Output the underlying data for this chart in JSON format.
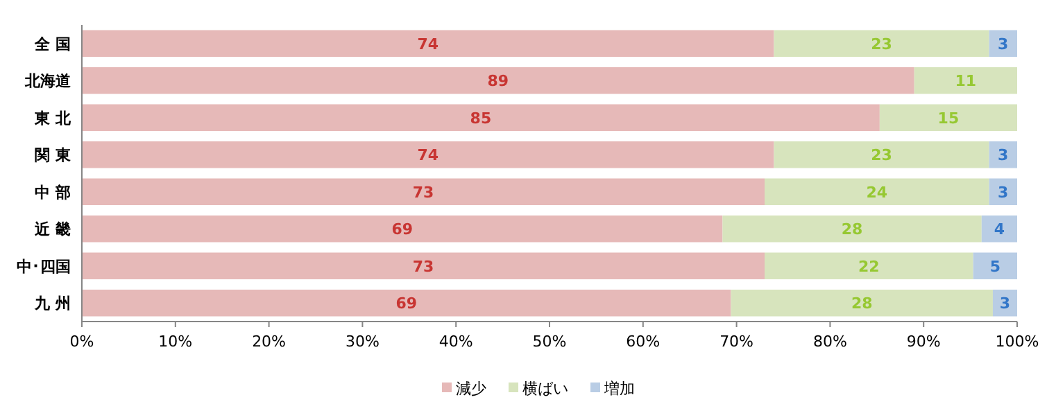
{
  "chart_data": {
    "type": "bar",
    "orientation": "horizontal",
    "stacked": true,
    "categories": [
      "全 国",
      "北海道",
      "東 北",
      "関 東",
      "中 部",
      "近 畿",
      "中･四国",
      "九 州"
    ],
    "series": [
      {
        "name": "減少",
        "color": "#e6b9b8",
        "values": [
          74,
          89,
          85.3,
          74,
          73,
          68.5,
          73,
          69.4
        ],
        "value_labels": [
          "74",
          "89",
          "85",
          "74",
          "73",
          "69",
          "73",
          "69"
        ]
      },
      {
        "name": "横ばい",
        "color": "#d7e4bd",
        "values": [
          23,
          11,
          14.7,
          23,
          24,
          27.7,
          22.3,
          28
        ],
        "value_labels": [
          "23",
          "11",
          "15",
          "23",
          "24",
          "28",
          "22",
          "28"
        ]
      },
      {
        "name": "増加",
        "color": "#b9cde5",
        "values": [
          3,
          0,
          0,
          3,
          3,
          3.8,
          4.7,
          2.6
        ],
        "value_labels": [
          "3",
          null,
          null,
          "3",
          "3",
          "4",
          "5",
          "3"
        ]
      }
    ],
    "xlim": [
      0,
      100
    ],
    "xticks": [
      {
        "value": 0,
        "label": "0%"
      },
      {
        "value": 10,
        "label": "10%"
      },
      {
        "value": 20,
        "label": "20%"
      },
      {
        "value": 30,
        "label": "30%"
      },
      {
        "value": 40,
        "label": "40%"
      },
      {
        "value": 50,
        "label": "50%"
      },
      {
        "value": 60,
        "label": "60%"
      },
      {
        "value": 70,
        "label": "70%"
      },
      {
        "value": 80,
        "label": "80%"
      },
      {
        "value": 90,
        "label": "90%"
      },
      {
        "value": 100,
        "label": "100%"
      }
    ],
    "legend": "bottom"
  }
}
